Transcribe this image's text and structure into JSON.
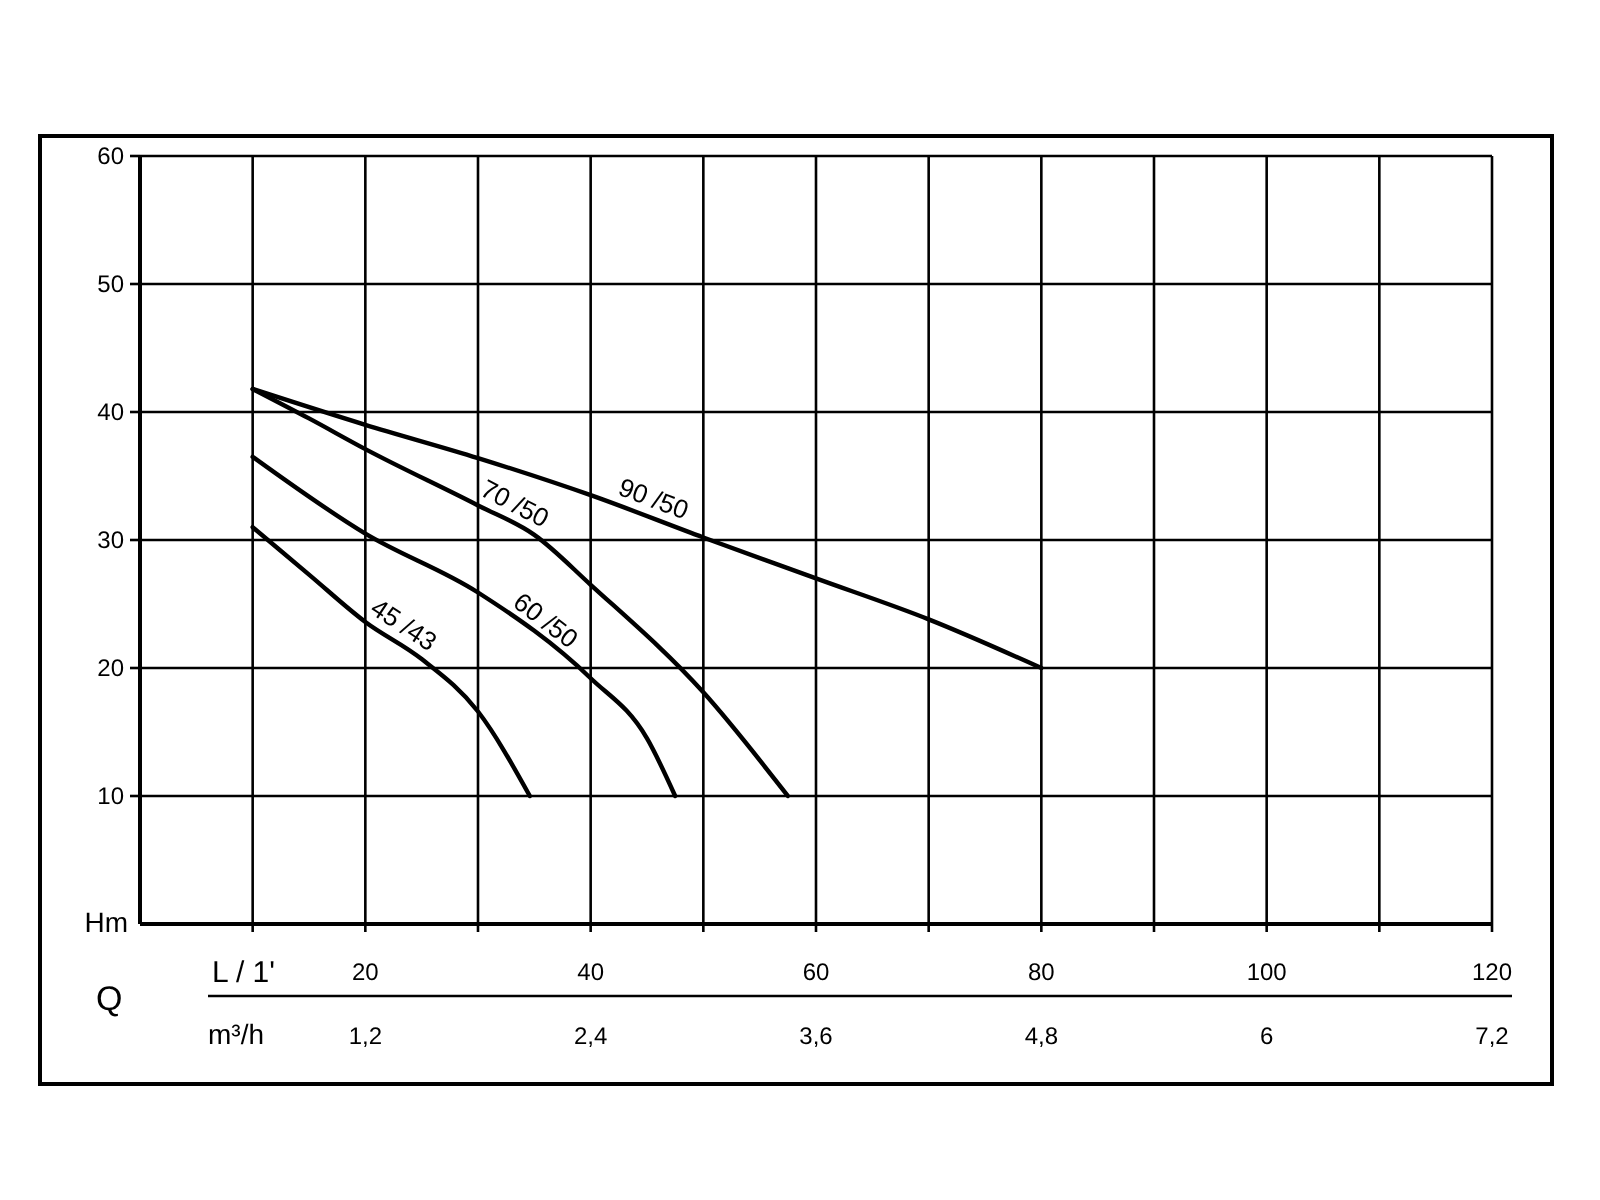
{
  "chart_data": {
    "type": "line",
    "xlabel": "L / 1'",
    "x2label": "m³/h",
    "ylabel": "Hm",
    "annotations": [
      "Q"
    ],
    "xlim": [
      0,
      120
    ],
    "xticks": [
      {
        "value": 10,
        "label": null
      },
      20,
      {
        "value": 30,
        "label": null
      },
      40,
      {
        "value": 50,
        "label": null
      },
      60,
      {
        "value": 70,
        "label": null
      },
      80,
      {
        "value": 90,
        "label": null
      },
      100,
      {
        "value": 110,
        "label": null
      },
      120
    ],
    "x2lim": [
      0,
      7.2
    ],
    "x2ticks": [
      {
        "value": 1.2,
        "label": "1,2"
      },
      {
        "value": 2.4,
        "label": "2,4"
      },
      {
        "value": 3.6,
        "label": "3,6"
      },
      {
        "value": 4.8,
        "label": "4,8"
      },
      6,
      {
        "value": 7.2,
        "label": "7,2"
      }
    ],
    "ylim": [
      0,
      60
    ],
    "yticks": [
      10,
      20,
      30,
      40,
      50,
      60
    ],
    "grid": true,
    "marker": "none",
    "line_style": "solid",
    "series": [
      {
        "name": "45 /43",
        "color": "#000000",
        "x": [
          10,
          15,
          20,
          25,
          30,
          34.6
        ],
        "values": [
          31,
          27.3,
          23.6,
          20.7,
          16.6,
          10
        ]
      },
      {
        "name": "60 /50",
        "color": "#000000",
        "x": [
          10,
          20,
          30,
          40,
          45,
          47.5
        ],
        "values": [
          36.5,
          30.5,
          25.9,
          19.2,
          14.5,
          10
        ]
      },
      {
        "name": "70 /50",
        "color": "#000000",
        "x": [
          10,
          15,
          20,
          30,
          35,
          40,
          50,
          57.5
        ],
        "values": [
          41.8,
          39.5,
          37.1,
          32.7,
          30.4,
          26.5,
          18.1,
          10
        ]
      },
      {
        "name": "90 /50",
        "color": "#000000",
        "x": [
          10,
          20,
          30,
          40,
          50,
          60,
          70,
          80
        ],
        "values": [
          41.8,
          39,
          36.4,
          33.5,
          30.2,
          27,
          23.8,
          20
        ]
      }
    ]
  }
}
